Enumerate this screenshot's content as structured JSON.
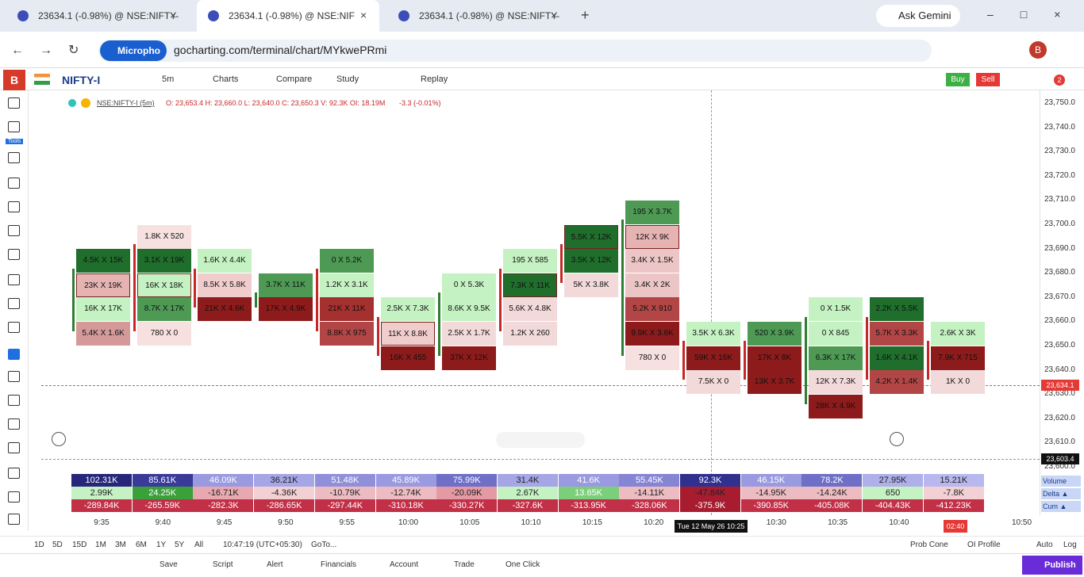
{
  "browser": {
    "tabs": [
      "23634.1 (-0.98%) @ NSE:NIFTY-",
      "23634.1 (-0.98%) @ NSE:NIF",
      "23634.1 (-0.98%) @ NSE:NIFTY-"
    ],
    "gemini": "Ask Gemini",
    "mic": "Micropho",
    "url": "gocharting.com/terminal/chart/MYkwePRmi",
    "profile": "B"
  },
  "toolbar": {
    "logo": "B",
    "symbol": "NIFTY-I",
    "interval": "5m",
    "menu": [
      "Charts",
      "Compare",
      "Study",
      "Replay"
    ],
    "buy": "Buy",
    "sell": "Sell",
    "badge": "2"
  },
  "sidebar": {
    "tools": "Tools"
  },
  "legend": {
    "symbol": "NSE:NIFTY-I (5m)",
    "ohlc": "O: 23,653.4 H: 23,660.0 L: 23,640.0 C: 23,650.3 V: 92.3K OI: 18.19M",
    "change": "-3.3 (-0.01%)"
  },
  "price_axis": {
    "labels": [
      "23,750.0",
      "23,740.0",
      "23,730.0",
      "23,720.0",
      "23,710.0",
      "23,700.0",
      "23,690.0",
      "23,680.0",
      "23,670.0",
      "23,660.0",
      "23,650.0",
      "23,640.0",
      "23,630.0",
      "23,620.0",
      "23,610.0",
      "23,600.0"
    ],
    "last": "23,634.1",
    "cursor": "23,603.4"
  },
  "footprint": {
    "columns": [
      {
        "cells": [
          {
            "text": "4.5K X 15K",
            "color": "#1f6e2c"
          },
          {
            "text": "23K X 19K",
            "color": "#e6b3b3",
            "outlined": true
          },
          {
            "text": "16K X 17K",
            "color": "#c5f2c3"
          },
          {
            "text": "5.4K X 1.6K",
            "color": "#d49a9a"
          }
        ]
      },
      {
        "cells": [
          {
            "text": "1.8K X 520",
            "color": "#f6e0e0"
          },
          {
            "text": "3.1K X 19K",
            "color": "#1f6e2c"
          },
          {
            "text": "16K X 18K",
            "color": "#c5f2c3",
            "outlined": true
          },
          {
            "text": "8.7K X 17K",
            "color": "#4e9a55"
          },
          {
            "text": "780 X 0",
            "color": "#f6e0e0"
          }
        ]
      },
      {
        "cells": [
          {
            "text": "1.6K X 4.4K",
            "color": "#c5f2c3"
          },
          {
            "text": "8.5K X 5.8K",
            "color": "#f0cccc"
          },
          {
            "text": "21K X 4.6K",
            "color": "#8e1b1b"
          }
        ]
      },
      {
        "cells": [
          {
            "text": "3.7K X 11K",
            "color": "#4e9a55"
          },
          {
            "text": "17K X 4.9K",
            "color": "#8e1b1b"
          }
        ]
      },
      {
        "cells": [
          {
            "text": "0 X 5.2K",
            "color": "#4e9a55"
          },
          {
            "text": "1.2K X 3.1K",
            "color": "#c5f2c3"
          },
          {
            "text": "21K X 11K",
            "color": "#a53030"
          },
          {
            "text": "8.8K X 975",
            "color": "#b24646"
          }
        ]
      },
      {
        "cells": [
          {
            "text": "2.5K X 7.3K",
            "color": "#c5f2c3"
          },
          {
            "text": "11K X 8.8K",
            "color": "#f0cccc",
            "outlined": true
          },
          {
            "text": "16K X 455",
            "color": "#8e1b1b"
          }
        ]
      },
      {
        "cells": [
          {
            "text": "0 X 5.3K",
            "color": "#c5f2c3"
          },
          {
            "text": "8.6K X 9.5K",
            "color": "#c5f2c3"
          },
          {
            "text": "2.5K X 1.7K",
            "color": "#f3dada"
          },
          {
            "text": "37K X 12K",
            "color": "#8e1b1b"
          }
        ]
      },
      {
        "cells": [
          {
            "text": "195 X 585",
            "color": "#c5f2c3"
          },
          {
            "text": "7.3K X 11K",
            "color": "#1f6e2c",
            "outlined": true
          },
          {
            "text": "5.6K X 4.8K",
            "color": "#f3dada"
          },
          {
            "text": "1.2K X 260",
            "color": "#f3dada"
          }
        ]
      },
      {
        "cells": [
          {
            "text": "5.5K X 12K",
            "color": "#1f6e2c",
            "outlined": true
          },
          {
            "text": "3.5K X 12K",
            "color": "#1f6e2c"
          },
          {
            "text": "5K X 3.8K",
            "color": "#f3dada"
          }
        ]
      },
      {
        "cells": [
          {
            "text": "195 X 3.7K",
            "color": "#4e9a55"
          },
          {
            "text": "12K X 9K",
            "color": "#e6b3b3",
            "outlined": true
          },
          {
            "text": "3.4K X 1.5K",
            "color": "#ecc6c6"
          },
          {
            "text": "3.4K X 2K",
            "color": "#ecc6c6"
          },
          {
            "text": "5.2K X 910",
            "color": "#b24646"
          },
          {
            "text": "9.9K X 3.6K",
            "color": "#8e1b1b"
          },
          {
            "text": "780 X 0",
            "color": "#f6e0e0"
          }
        ]
      },
      {
        "cells": [
          {
            "text": "3.5K X 6.3K",
            "color": "#c5f2c3"
          },
          {
            "text": "59K X 16K",
            "color": "#8e1b1b"
          },
          {
            "text": "7.5K X 0",
            "color": "#f3dada"
          }
        ]
      },
      {
        "cells": [
          {
            "text": "520 X 3.9K",
            "color": "#4e9a55"
          },
          {
            "text": "17K X 8K",
            "color": "#8e1b1b"
          },
          {
            "text": "13K X 3.7K",
            "color": "#8e1b1b"
          }
        ]
      },
      {
        "cells": [
          {
            "text": "0 X 1.5K",
            "color": "#c5f2c3"
          },
          {
            "text": "0 X 845",
            "color": "#c5f2c3"
          },
          {
            "text": "6.3K X 17K",
            "color": "#4e9a55"
          },
          {
            "text": "12K X 7.3K",
            "color": "#f3dada"
          },
          {
            "text": "28K X 4.9K",
            "color": "#8e1b1b"
          }
        ]
      },
      {
        "cells": [
          {
            "text": "2.2K X 5.5K",
            "color": "#1f6e2c"
          },
          {
            "text": "5.7K X 3.3K",
            "color": "#b24646"
          },
          {
            "text": "1.6K X 4.1K",
            "color": "#1f6e2c"
          },
          {
            "text": "4.2K X 1.4K",
            "color": "#b24646"
          }
        ]
      },
      {
        "cells": [
          {
            "text": "2.6K X 3K",
            "color": "#c5f2c3"
          },
          {
            "text": "7.9K X 715",
            "color": "#8e1b1b"
          },
          {
            "text": "1K X 0",
            "color": "#f3dada"
          }
        ]
      }
    ]
  },
  "stats": {
    "rows": [
      {
        "label": "Volume",
        "values": [
          "102.31K",
          "85.61K",
          "46.09K",
          "36.21K",
          "51.48K",
          "45.89K",
          "75.99K",
          "31.4K",
          "41.6K",
          "55.45K",
          "92.3K",
          "46.15K",
          "78.2K",
          "27.95K",
          "15.21K"
        ],
        "colors": [
          "#26267a",
          "#3a3a99",
          "#9a9ae0",
          "#a6a6e6",
          "#9090da",
          "#9a9ae0",
          "#6f6fc8",
          "#a6a6e6",
          "#9a9ae0",
          "#8585d4",
          "#30308f",
          "#9a9ae0",
          "#6f6fc8",
          "#afafea",
          "#b8b8ee"
        ]
      },
      {
        "label": "Delta ▲",
        "values": [
          "2.99K",
          "24.25K",
          "-16.71K",
          "-4.36K",
          "-10.79K",
          "-12.74K",
          "-20.09K",
          "2.67K",
          "13.65K",
          "-14.11K",
          "-47.84K",
          "-14.95K",
          "-14.24K",
          "650",
          "-7.8K"
        ],
        "colors": [
          "#c5f2c3",
          "#3aa03a",
          "#e8a8b0",
          "#f2d0d4",
          "#ecbcc2",
          "#ecbcc2",
          "#e49aa4",
          "#c5f2c3",
          "#7ccf7a",
          "#ecbcc2",
          "#a81c30",
          "#ecbcc2",
          "#ecbcc2",
          "#c5f2c3",
          "#f2d0d4"
        ]
      },
      {
        "label": "Cum ▲",
        "values": [
          "-289.84K",
          "-265.59K",
          "-282.3K",
          "-286.65K",
          "-297.44K",
          "-310.18K",
          "-330.27K",
          "-327.6K",
          "-313.95K",
          "-328.06K",
          "-375.9K",
          "-390.85K",
          "-405.08K",
          "-404.43K",
          "-412.23K"
        ],
        "colors": [
          "#c23047",
          "#c23047",
          "#c23047",
          "#c23047",
          "#c23047",
          "#c23047",
          "#c23047",
          "#c23047",
          "#c23047",
          "#c23047",
          "#a81c30",
          "#c23047",
          "#c23047",
          "#c23047",
          "#c23047"
        ]
      }
    ]
  },
  "time_axis": {
    "labels": [
      "9:35",
      "9:40",
      "9:45",
      "9:50",
      "9:55",
      "10:00",
      "10:05",
      "10:10",
      "10:15",
      "10:20",
      "10:30",
      "10:35",
      "10:40",
      "10:50"
    ],
    "cursor": "Tue 12 May 26 10:25",
    "countdown": "02:40"
  },
  "ranges": [
    "1D",
    "5D",
    "15D",
    "1M",
    "3M",
    "6M",
    "1Y",
    "5Y",
    "All"
  ],
  "clock": "10:47:19 (UTC+05:30)",
  "goto": "GoTo...",
  "right_tools": [
    "Prob Cone",
    "OI Profile",
    "Auto",
    "Log"
  ],
  "bottom": {
    "items": [
      "Save",
      "Script",
      "Alert",
      "Financials",
      "Account",
      "Trade",
      "One Click"
    ],
    "publish": "Publish"
  }
}
